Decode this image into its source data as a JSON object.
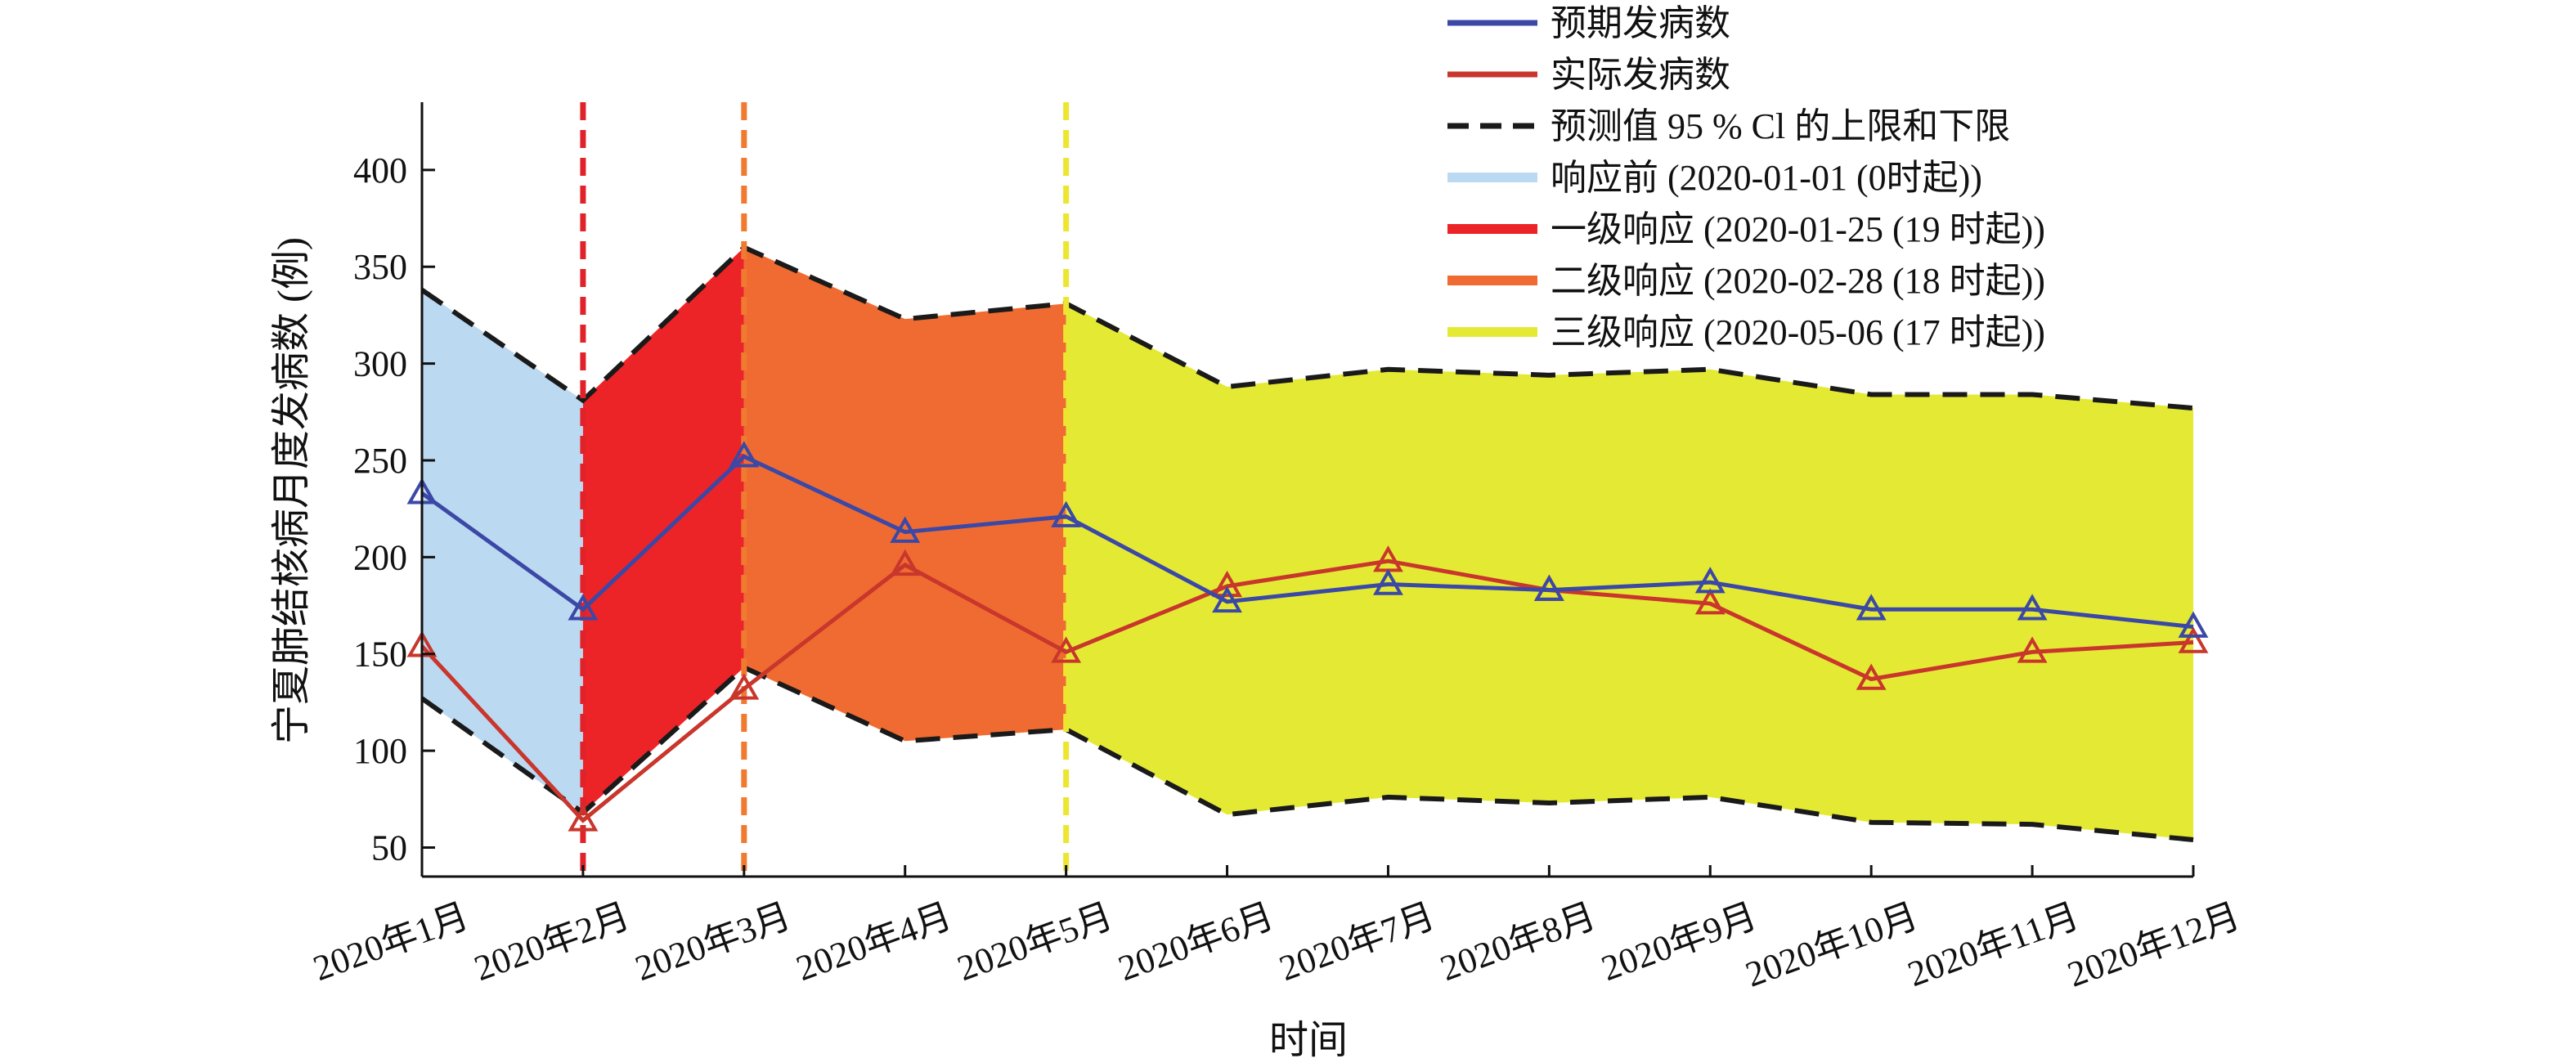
{
  "chart_data": {
    "type": "line",
    "xlabel": "时间",
    "ylabel": "宁夏肺结核病月度发病数 (例)",
    "categories": [
      "2020年1月",
      "2020年2月",
      "2020年3月",
      "2020年4月",
      "2020年5月",
      "2020年6月",
      "2020年7月",
      "2020年8月",
      "2020年9月",
      "2020年10月",
      "2020年11月",
      "2020年12月"
    ],
    "y_ticks": [
      "50",
      "100",
      "150",
      "200",
      "250",
      "300",
      "350",
      "400"
    ],
    "ylim": [
      35,
      435
    ],
    "grid": false,
    "legend_position": "top-right",
    "series": [
      {
        "name": "预期发病数",
        "color": "#3b48a6",
        "marker": "triangle",
        "values": [
          233,
          173,
          252,
          213,
          221,
          177,
          186,
          183,
          187,
          173,
          173,
          164
        ]
      },
      {
        "name": "实际发病数",
        "color": "#c8362c",
        "marker": "triangle",
        "values": [
          154,
          64,
          132,
          196,
          151,
          185,
          198,
          183,
          176,
          137,
          151,
          156
        ]
      }
    ],
    "interval": {
      "name": "预测值 95 % Cl 的上限和下限",
      "upper": [
        338,
        281,
        360,
        323,
        331,
        288,
        297,
        294,
        297,
        284,
        284,
        277
      ],
      "lower": [
        127,
        68,
        143,
        105,
        111,
        67,
        76,
        73,
        76,
        63,
        62,
        54
      ]
    },
    "phases": [
      {
        "name": "响应前 (2020-01-01 (0时起))",
        "color": "#bcd9f2",
        "from_index": 0,
        "to_index": 1,
        "boundary_color": ""
      },
      {
        "name": "一级响应 (2020-01-25 (19 时起))",
        "color": "#ec2427",
        "from_index": 1,
        "to_index": 2,
        "boundary_color": "#e0222a"
      },
      {
        "name": "二级响应 (2020-02-28 (18 时起))",
        "color": "#f06b31",
        "from_index": 2,
        "to_index": 4,
        "boundary_color": "#f07a30"
      },
      {
        "name": "三级响应 (2020-05-06 (17 时起))",
        "color": "#e4ea34",
        "from_index": 4,
        "to_index": 11,
        "boundary_color": "#ede630"
      }
    ]
  }
}
